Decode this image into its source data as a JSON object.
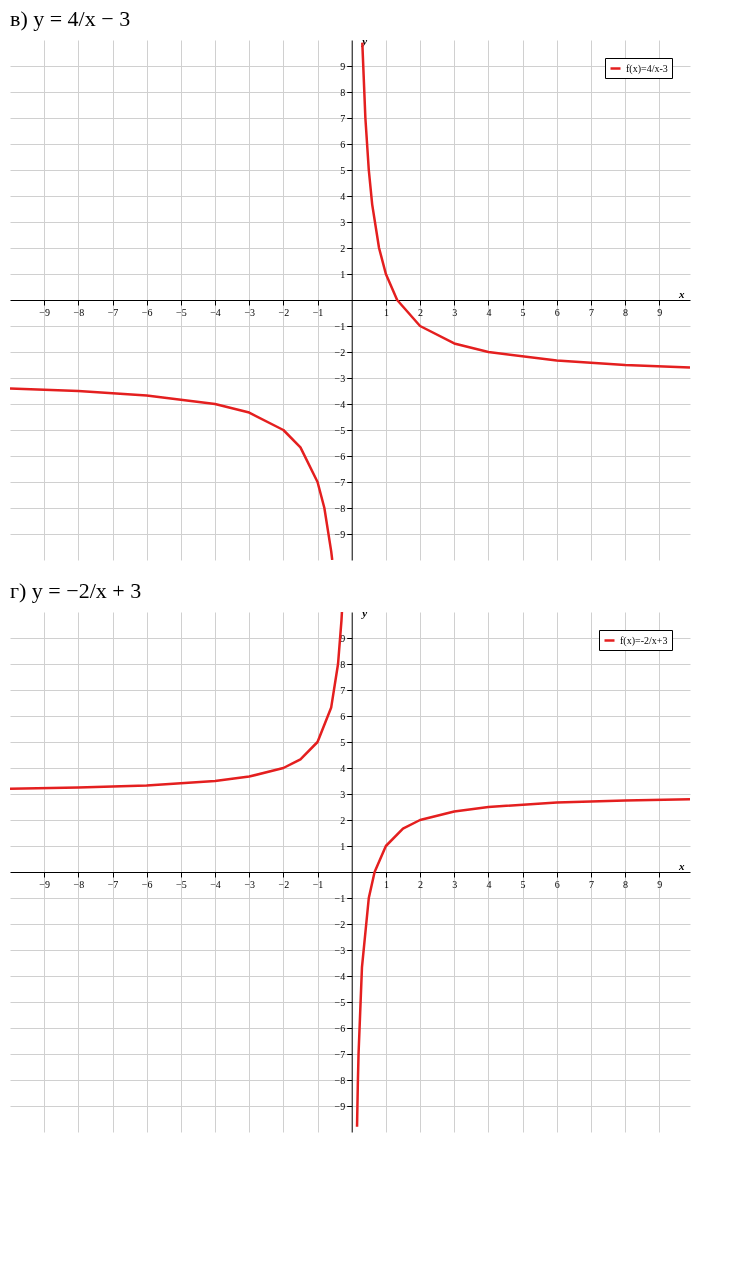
{
  "chart_data": [
    {
      "type": "line",
      "title": "в) y = 4/x − 3",
      "xlabel": "x",
      "ylabel": "y",
      "xlim": [
        -10,
        9.9
      ],
      "ylim": [
        -10,
        10
      ],
      "xticks": [
        -9,
        -8,
        -7,
        -6,
        -5,
        -4,
        -3,
        -2,
        -1,
        1,
        2,
        3,
        4,
        5,
        6,
        7,
        8,
        9
      ],
      "yticks": [
        -9,
        -8,
        -7,
        -6,
        -5,
        -4,
        -3,
        -2,
        -1,
        1,
        2,
        3,
        4,
        5,
        6,
        7,
        8,
        9
      ],
      "grid": true,
      "legend": "top right",
      "series": [
        {
          "name": "f(x)=4/x-3",
          "color": "#e41f1f",
          "x": [
            -10,
            -8,
            -6,
            -4,
            -3,
            -2,
            -1.5,
            -1,
            -0.8,
            -0.6,
            -0.57,
            0,
            0.31,
            0.4,
            0.5,
            0.6,
            0.8,
            1,
            1.33,
            2,
            3,
            4,
            6,
            8,
            9.9
          ],
          "values": [
            -3.4,
            -3.5,
            -3.67,
            -4,
            -4.33,
            -5,
            -5.67,
            -7,
            -8,
            -9.67,
            -10,
            null,
            9.9,
            7,
            5,
            3.67,
            2,
            1,
            0,
            -1,
            -1.67,
            -2,
            -2.33,
            -2.5,
            -2.6
          ]
        }
      ]
    },
    {
      "type": "line",
      "title": "г) y = −2/x + 3",
      "xlabel": "x",
      "ylabel": "y",
      "xlim": [
        -10,
        9.9
      ],
      "ylim": [
        -10,
        10
      ],
      "xticks": [
        -9,
        -8,
        -7,
        -6,
        -5,
        -4,
        -3,
        -2,
        -1,
        1,
        2,
        3,
        4,
        5,
        6,
        7,
        8,
        9
      ],
      "yticks": [
        -9,
        -8,
        -7,
        -6,
        -5,
        -4,
        -3,
        -2,
        -1,
        1,
        2,
        3,
        4,
        5,
        6,
        7,
        8,
        9
      ],
      "grid": true,
      "legend": "top right",
      "series": [
        {
          "name": "f(x)=-2/x+3",
          "color": "#e41f1f",
          "x": [
            -10,
            -8,
            -6,
            -4,
            -3,
            -2,
            -1.5,
            -1,
            -0.6,
            -0.4,
            -0.3,
            -0.286,
            0,
            0.156,
            0.16,
            0.18,
            0.2,
            0.3,
            0.5,
            0.67,
            1,
            1.5,
            2,
            3,
            4,
            6,
            8,
            9.9
          ],
          "values": [
            3.2,
            3.25,
            3.33,
            3.5,
            3.67,
            4,
            4.33,
            5,
            6.33,
            8,
            9.67,
            10,
            null,
            -9.8,
            -9.5,
            -8.1,
            -7,
            -3.67,
            -1,
            0,
            1,
            1.67,
            2,
            2.33,
            2.5,
            2.67,
            2.75,
            2.8
          ]
        }
      ]
    }
  ]
}
